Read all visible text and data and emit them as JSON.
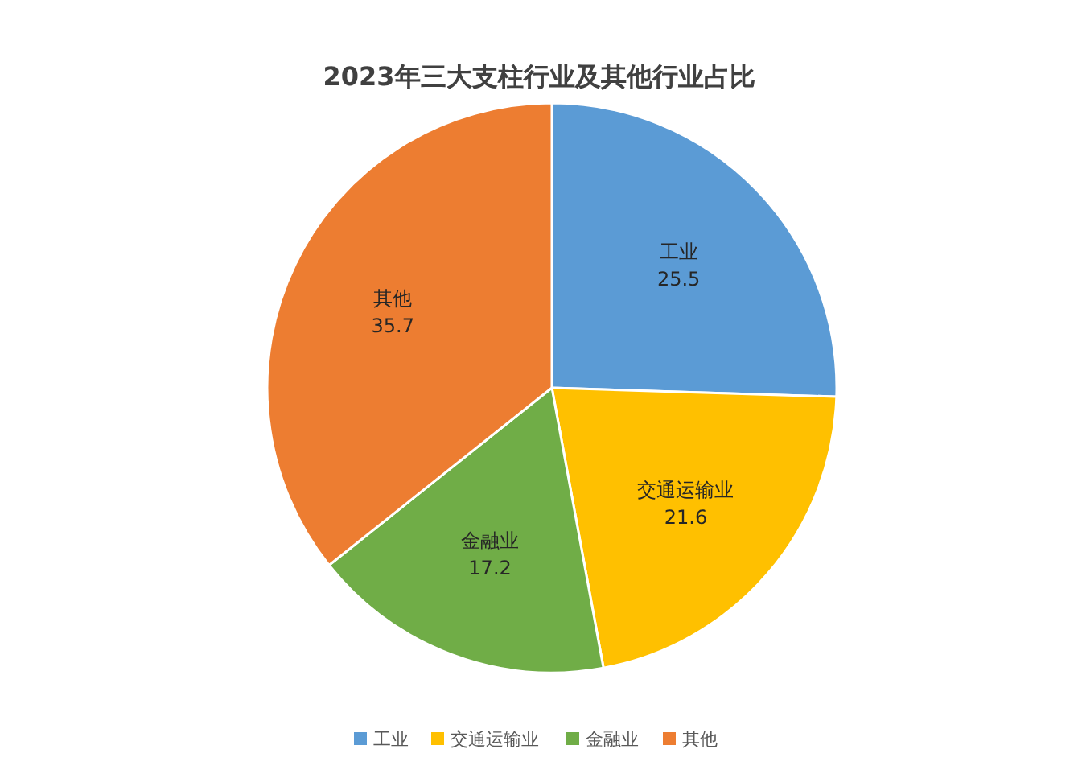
{
  "chart_data": {
    "type": "pie",
    "title": "2023年三大支柱行业及其他行业占比",
    "categories": [
      "工业",
      "交通运输业",
      "金融业",
      "其他"
    ],
    "values": [
      25.5,
      21.6,
      17.2,
      35.7
    ],
    "colors": [
      "#5b9bd5",
      "#ffc000",
      "#70ad47",
      "#ed7d31"
    ],
    "data_labels": true,
    "legend": "bottom"
  }
}
